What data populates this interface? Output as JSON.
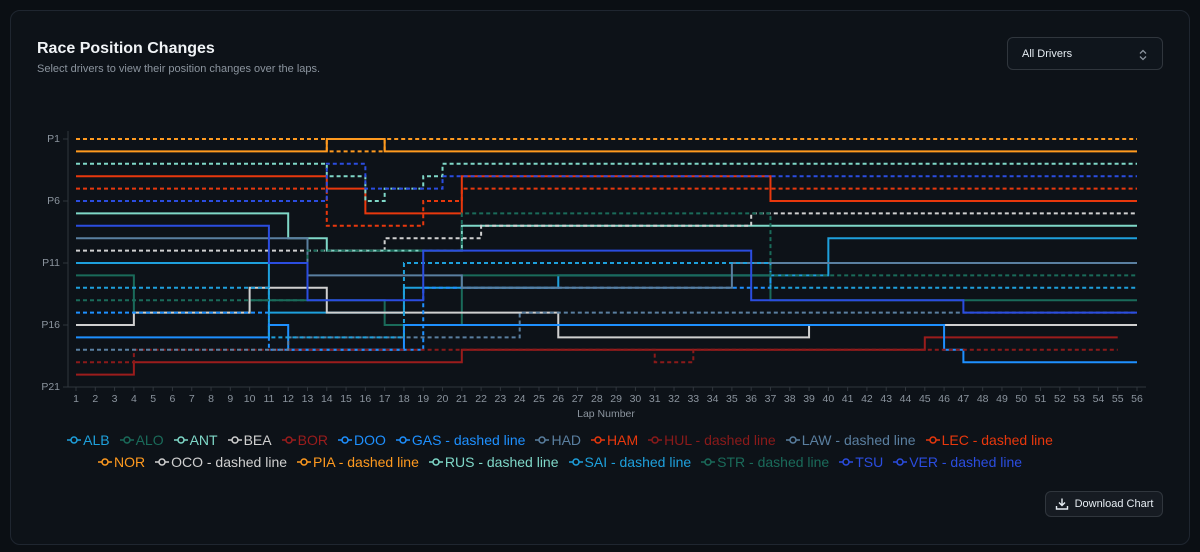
{
  "chart_data": {
    "type": "step-line",
    "title": "Race Position Changes",
    "subtitle": "Select drivers to view their position changes over the laps.",
    "x_label": "Lap Number",
    "x": [
      1,
      2,
      3,
      4,
      5,
      6,
      7,
      8,
      9,
      10,
      11,
      12,
      13,
      14,
      15,
      16,
      17,
      18,
      19,
      20,
      21,
      22,
      23,
      24,
      25,
      26,
      27,
      28,
      29,
      30,
      31,
      32,
      33,
      34,
      35,
      36,
      37,
      38,
      39,
      40,
      41,
      42,
      43,
      44,
      45,
      46,
      47,
      48,
      49,
      50,
      51,
      52,
      53,
      54,
      55,
      56
    ],
    "xlim": [
      1,
      56
    ],
    "xticks": [
      1,
      2,
      3,
      4,
      5,
      6,
      7,
      8,
      9,
      10,
      11,
      12,
      13,
      14,
      15,
      16,
      17,
      18,
      19,
      20,
      21,
      22,
      23,
      24,
      25,
      26,
      27,
      28,
      29,
      30,
      31,
      32,
      33,
      34,
      35,
      36,
      37,
      38,
      39,
      40,
      41,
      42,
      43,
      44,
      45,
      46,
      47,
      48,
      49,
      50,
      51,
      52,
      53,
      54,
      55,
      56
    ],
    "ylim": [
      1,
      21
    ],
    "y_reversed": true,
    "yticks": [
      {
        "value": 1,
        "label": "P1"
      },
      {
        "value": 6,
        "label": "P6"
      },
      {
        "value": 11,
        "label": "P11"
      },
      {
        "value": 16,
        "label": "P16"
      },
      {
        "value": 21,
        "label": "P21"
      }
    ],
    "series": [
      {
        "name": "ALB",
        "color": "#1ea0dc",
        "dashed": false,
        "values": [
          11,
          11,
          11,
          11,
          11,
          11,
          11,
          11,
          11,
          11,
          15,
          15,
          15,
          15,
          15,
          15,
          15,
          13,
          13,
          13,
          13,
          13,
          13,
          13,
          13,
          12,
          12,
          12,
          12,
          12,
          12,
          12,
          12,
          12,
          12,
          12,
          12,
          12,
          12,
          9,
          9,
          9,
          9,
          9,
          9,
          9,
          9,
          9,
          9,
          9,
          9,
          9,
          9,
          9,
          9,
          9
        ]
      },
      {
        "name": "ALO",
        "color": "#1a6b5a",
        "dashed": false,
        "values": [
          12,
          12,
          12,
          15,
          15,
          15,
          15,
          15,
          15,
          14,
          14,
          14,
          14,
          14,
          14,
          14,
          16,
          16,
          16,
          16,
          12,
          12,
          12,
          12,
          12,
          12,
          12,
          12,
          12,
          12,
          12,
          12,
          12,
          12,
          12,
          12,
          14,
          14,
          14,
          14,
          14,
          14,
          14,
          14,
          14,
          14,
          14,
          14,
          14,
          14,
          14,
          14,
          14,
          14,
          14,
          14
        ]
      },
      {
        "name": "ANT",
        "color": "#7fd8c8",
        "dashed": false,
        "values": [
          7,
          7,
          7,
          7,
          7,
          7,
          7,
          7,
          7,
          7,
          7,
          9,
          9,
          10,
          10,
          10,
          10,
          10,
          10,
          10,
          8,
          8,
          8,
          8,
          8,
          8,
          8,
          8,
          8,
          8,
          8,
          8,
          8,
          8,
          8,
          8,
          8,
          8,
          8,
          8,
          8,
          8,
          8,
          8,
          8,
          8,
          8,
          8,
          8,
          8,
          8,
          8,
          8,
          8,
          8,
          8
        ]
      },
      {
        "name": "BEA",
        "color": "#d0d0d0",
        "dashed": false,
        "values": [
          16,
          16,
          16,
          15,
          15,
          15,
          15,
          15,
          15,
          13,
          13,
          13,
          13,
          15,
          15,
          15,
          15,
          15,
          15,
          15,
          15,
          15,
          15,
          15,
          15,
          17,
          17,
          17,
          17,
          17,
          17,
          17,
          17,
          17,
          17,
          17,
          17,
          17,
          16,
          16,
          16,
          16,
          16,
          16,
          16,
          16,
          16,
          16,
          16,
          16,
          16,
          16,
          16,
          16,
          16,
          16
        ]
      },
      {
        "name": "BOR",
        "color": "#9b1c1c",
        "dashed": false,
        "values": [
          20,
          20,
          20,
          19,
          19,
          19,
          19,
          19,
          19,
          19,
          19,
          19,
          19,
          19,
          19,
          19,
          19,
          19,
          19,
          19,
          18,
          18,
          18,
          18,
          18,
          18,
          18,
          18,
          18,
          18,
          18,
          18,
          18,
          18,
          18,
          18,
          18,
          18,
          18,
          18,
          18,
          18,
          18,
          18,
          17,
          17,
          17,
          17,
          17,
          17,
          17,
          17,
          17,
          17,
          17,
          null
        ]
      },
      {
        "name": "DOO",
        "color": "#1e90ff",
        "dashed": false,
        "values": [
          17,
          17,
          17,
          17,
          17,
          17,
          17,
          17,
          17,
          17,
          16,
          18,
          18,
          18,
          18,
          18,
          18,
          16,
          16,
          16,
          16,
          16,
          16,
          16,
          16,
          16,
          16,
          16,
          16,
          16,
          16,
          16,
          16,
          16,
          16,
          16,
          16,
          16,
          16,
          16,
          16,
          16,
          16,
          16,
          16,
          18,
          19,
          19,
          19,
          19,
          19,
          19,
          19,
          19,
          19,
          19
        ]
      },
      {
        "name": "GAS - dashed line",
        "color": "#1e90ff",
        "dashed": true,
        "values": [
          15,
          15,
          15,
          15,
          15,
          15,
          15,
          15,
          15,
          15,
          18,
          18,
          18,
          18,
          18,
          18,
          18,
          18,
          13,
          13,
          13,
          13,
          13,
          13,
          13,
          13,
          13,
          13,
          13,
          13,
          13,
          13,
          13,
          13,
          13,
          13,
          11,
          11,
          11,
          11,
          11,
          11,
          11,
          11,
          11,
          11,
          11,
          11,
          11,
          11,
          11,
          11,
          11,
          11,
          11,
          11
        ]
      },
      {
        "name": "HAD",
        "color": "#5a7fa0",
        "dashed": false,
        "values": [
          9,
          9,
          9,
          9,
          9,
          9,
          9,
          9,
          9,
          9,
          9,
          9,
          12,
          12,
          12,
          12,
          12,
          12,
          12,
          12,
          13,
          13,
          13,
          13,
          13,
          13,
          13,
          13,
          13,
          13,
          13,
          13,
          13,
          13,
          11,
          11,
          11,
          11,
          11,
          11,
          11,
          11,
          11,
          11,
          11,
          11,
          11,
          11,
          11,
          11,
          11,
          11,
          11,
          11,
          11,
          11
        ]
      },
      {
        "name": "HAM",
        "color": "#e8380d",
        "dashed": false,
        "values": [
          4,
          4,
          4,
          4,
          4,
          4,
          4,
          4,
          4,
          4,
          4,
          4,
          4,
          5,
          5,
          7,
          7,
          7,
          7,
          7,
          4,
          4,
          4,
          4,
          4,
          4,
          4,
          4,
          4,
          4,
          4,
          4,
          4,
          4,
          4,
          4,
          6,
          6,
          6,
          6,
          6,
          6,
          6,
          6,
          6,
          6,
          6,
          6,
          6,
          6,
          6,
          6,
          6,
          6,
          6,
          6
        ]
      },
      {
        "name": "HUL - dashed line",
        "color": "#8b1a1a",
        "dashed": true,
        "values": [
          19,
          19,
          19,
          18,
          18,
          18,
          18,
          18,
          18,
          18,
          18,
          18,
          18,
          18,
          18,
          18,
          18,
          18,
          18,
          18,
          18,
          18,
          18,
          18,
          18,
          18,
          18,
          18,
          18,
          18,
          19,
          19,
          18,
          18,
          18,
          18,
          18,
          18,
          18,
          18,
          18,
          18,
          18,
          18,
          18,
          18,
          18,
          18,
          18,
          18,
          18,
          18,
          18,
          18,
          18,
          null
        ]
      },
      {
        "name": "LAW - dashed line",
        "color": "#5a7fa0",
        "dashed": true,
        "values": [
          18,
          18,
          18,
          18,
          18,
          18,
          18,
          18,
          18,
          18,
          18,
          17,
          17,
          17,
          17,
          17,
          17,
          17,
          17,
          17,
          17,
          17,
          17,
          15,
          15,
          15,
          15,
          15,
          15,
          15,
          15,
          15,
          15,
          15,
          15,
          15,
          15,
          15,
          15,
          15,
          15,
          15,
          15,
          15,
          15,
          15,
          15,
          15,
          15,
          15,
          15,
          15,
          15,
          15,
          15,
          15
        ]
      },
      {
        "name": "LEC - dashed line",
        "color": "#e8380d",
        "dashed": true,
        "values": [
          5,
          5,
          5,
          5,
          5,
          5,
          5,
          5,
          5,
          5,
          5,
          5,
          5,
          8,
          8,
          8,
          8,
          8,
          6,
          6,
          5,
          5,
          5,
          5,
          5,
          5,
          5,
          5,
          5,
          5,
          5,
          5,
          5,
          5,
          5,
          5,
          5,
          5,
          5,
          5,
          5,
          5,
          5,
          5,
          5,
          5,
          5,
          5,
          5,
          5,
          5,
          5,
          5,
          5,
          5,
          5
        ]
      },
      {
        "name": "NOR",
        "color": "#ff9a1f",
        "dashed": false,
        "values": [
          2,
          2,
          2,
          2,
          2,
          2,
          2,
          2,
          2,
          2,
          2,
          2,
          2,
          1,
          1,
          1,
          2,
          2,
          2,
          2,
          2,
          2,
          2,
          2,
          2,
          2,
          2,
          2,
          2,
          2,
          2,
          2,
          2,
          2,
          2,
          2,
          2,
          2,
          2,
          2,
          2,
          2,
          2,
          2,
          2,
          2,
          2,
          2,
          2,
          2,
          2,
          2,
          2,
          2,
          2,
          2
        ]
      },
      {
        "name": "OCO - dashed line",
        "color": "#d0d0d0",
        "dashed": true,
        "values": [
          10,
          10,
          10,
          10,
          10,
          10,
          10,
          10,
          10,
          10,
          10,
          10,
          10,
          10,
          10,
          10,
          9,
          9,
          9,
          9,
          9,
          8,
          8,
          8,
          8,
          8,
          8,
          8,
          8,
          8,
          8,
          8,
          8,
          8,
          8,
          7,
          7,
          7,
          7,
          7,
          7,
          7,
          7,
          7,
          7,
          7,
          7,
          7,
          7,
          7,
          7,
          7,
          7,
          7,
          7,
          7
        ]
      },
      {
        "name": "PIA - dashed line",
        "color": "#ff9a1f",
        "dashed": true,
        "values": [
          1,
          1,
          1,
          1,
          1,
          1,
          1,
          1,
          1,
          1,
          1,
          1,
          1,
          2,
          2,
          2,
          1,
          1,
          1,
          1,
          1,
          1,
          1,
          1,
          1,
          1,
          1,
          1,
          1,
          1,
          1,
          1,
          1,
          1,
          1,
          1,
          1,
          1,
          1,
          1,
          1,
          1,
          1,
          1,
          1,
          1,
          1,
          1,
          1,
          1,
          1,
          1,
          1,
          1,
          1,
          1
        ]
      },
      {
        "name": "RUS - dashed line",
        "color": "#7fd8c8",
        "dashed": true,
        "values": [
          3,
          3,
          3,
          3,
          3,
          3,
          3,
          3,
          3,
          3,
          3,
          3,
          3,
          4,
          4,
          6,
          5,
          5,
          4,
          3,
          3,
          3,
          3,
          3,
          3,
          3,
          3,
          3,
          3,
          3,
          3,
          3,
          3,
          3,
          3,
          3,
          3,
          3,
          3,
          3,
          3,
          3,
          3,
          3,
          3,
          3,
          3,
          3,
          3,
          3,
          3,
          3,
          3,
          3,
          3,
          3
        ]
      },
      {
        "name": "SAI - dashed line",
        "color": "#1ea0dc",
        "dashed": true,
        "values": [
          13,
          13,
          13,
          13,
          13,
          13,
          13,
          13,
          13,
          13,
          17,
          17,
          17,
          17,
          17,
          17,
          17,
          11,
          11,
          11,
          11,
          11,
          11,
          11,
          11,
          11,
          11,
          11,
          11,
          11,
          11,
          11,
          11,
          11,
          11,
          11,
          13,
          13,
          13,
          13,
          13,
          13,
          13,
          13,
          13,
          13,
          13,
          13,
          13,
          13,
          13,
          13,
          13,
          13,
          13,
          13
        ]
      },
      {
        "name": "STR - dashed line",
        "color": "#1a6b5a",
        "dashed": true,
        "values": [
          14,
          14,
          14,
          14,
          14,
          14,
          14,
          14,
          14,
          14,
          14,
          14,
          10,
          10,
          10,
          10,
          10,
          10,
          10,
          10,
          7,
          7,
          7,
          7,
          7,
          7,
          7,
          7,
          7,
          7,
          7,
          7,
          7,
          7,
          7,
          7,
          12,
          12,
          12,
          12,
          12,
          12,
          12,
          12,
          12,
          12,
          12,
          12,
          12,
          12,
          12,
          12,
          12,
          12,
          12,
          12
        ]
      },
      {
        "name": "TSU",
        "color": "#2b4de0",
        "dashed": false,
        "values": [
          8,
          8,
          8,
          8,
          8,
          8,
          8,
          8,
          8,
          8,
          11,
          11,
          14,
          14,
          14,
          14,
          14,
          14,
          10,
          10,
          10,
          10,
          10,
          10,
          10,
          10,
          10,
          10,
          10,
          10,
          10,
          10,
          10,
          10,
          10,
          14,
          14,
          14,
          14,
          14,
          14,
          14,
          14,
          14,
          14,
          14,
          15,
          15,
          15,
          15,
          15,
          15,
          15,
          15,
          15,
          15
        ]
      },
      {
        "name": "VER - dashed line",
        "color": "#2b4de0",
        "dashed": true,
        "values": [
          6,
          6,
          6,
          6,
          6,
          6,
          6,
          6,
          6,
          6,
          6,
          6,
          6,
          3,
          3,
          5,
          5,
          5,
          5,
          4,
          4,
          4,
          4,
          4,
          4,
          4,
          4,
          4,
          4,
          4,
          4,
          4,
          4,
          4,
          4,
          4,
          4,
          4,
          4,
          4,
          4,
          4,
          4,
          4,
          4,
          4,
          4,
          4,
          4,
          4,
          4,
          4,
          4,
          4,
          4,
          4
        ]
      }
    ]
  },
  "controls": {
    "driver_select": "All Drivers",
    "download": "Download Chart"
  }
}
